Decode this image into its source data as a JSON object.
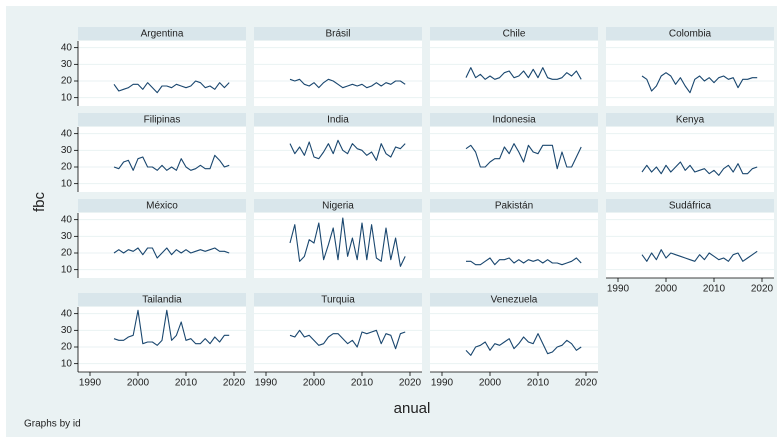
{
  "chart_data": {
    "type": "line",
    "y_label": "fbc",
    "x_label": "anual",
    "note": "Graphs by id",
    "x": [
      1995,
      1996,
      1997,
      1998,
      1999,
      2000,
      2001,
      2002,
      2003,
      2004,
      2005,
      2006,
      2007,
      2008,
      2009,
      2010,
      2011,
      2012,
      2013,
      2014,
      2015,
      2016,
      2017,
      2018,
      2019
    ],
    "xlim": [
      1987.5,
      2022.5
    ],
    "xticks": [
      1990,
      2000,
      2010,
      2020
    ],
    "ylim": [
      5,
      44
    ],
    "yticks": [
      10,
      20,
      30,
      40
    ],
    "series": [
      {
        "name": "Argentina",
        "color": "#1a476f",
        "values": [
          18,
          14,
          15,
          16,
          18,
          18,
          15,
          19,
          16,
          13,
          17,
          17,
          16,
          18,
          17,
          16,
          17,
          20,
          19,
          16,
          17,
          15,
          19,
          16,
          19
        ]
      },
      {
        "name": "Brásil",
        "color": "#1a476f",
        "values": [
          21,
          20,
          21,
          18,
          17,
          19,
          16,
          19,
          21,
          20,
          18,
          16,
          17,
          18,
          17,
          18,
          16,
          17,
          19,
          17,
          19,
          18,
          20,
          20,
          18
        ]
      },
      {
        "name": "Chile",
        "color": "#1a476f",
        "values": [
          22,
          28,
          22,
          24,
          21,
          23,
          21,
          22,
          25,
          26,
          22,
          23,
          26,
          22,
          27,
          22,
          28,
          22,
          21,
          21,
          22,
          25,
          23,
          26,
          21
        ]
      },
      {
        "name": "Colombia",
        "color": "#1a476f",
        "values": [
          23,
          21,
          14,
          17,
          23,
          25,
          23,
          18,
          22,
          17,
          13,
          21,
          23,
          20,
          22,
          19,
          22,
          23,
          21,
          22,
          16,
          21,
          21,
          22,
          22
        ]
      },
      {
        "name": "Filipinas",
        "color": "#1a476f",
        "values": [
          20,
          19,
          23,
          24,
          18,
          25,
          26,
          20,
          20,
          18,
          21,
          18,
          20,
          18,
          25,
          20,
          18,
          19,
          21,
          19,
          19,
          27,
          24,
          20,
          21
        ]
      },
      {
        "name": "India",
        "color": "#1a476f",
        "values": [
          34,
          28,
          32,
          27,
          35,
          26,
          25,
          29,
          34,
          28,
          36,
          30,
          28,
          34,
          31,
          30,
          27,
          29,
          24,
          34,
          28,
          26,
          32,
          31,
          34
        ]
      },
      {
        "name": "Indonesia",
        "color": "#1a476f",
        "values": [
          31,
          33,
          29,
          20,
          20,
          23,
          25,
          25,
          32,
          28,
          34,
          29,
          23,
          33,
          29,
          28,
          33,
          33,
          33,
          19,
          29,
          20,
          20,
          26,
          32
        ]
      },
      {
        "name": "Kenya",
        "color": "#1a476f",
        "values": [
          17,
          21,
          17,
          20,
          16,
          21,
          17,
          20,
          23,
          18,
          21,
          17,
          18,
          19,
          16,
          18,
          15,
          19,
          21,
          17,
          22,
          16,
          16,
          19,
          20
        ]
      },
      {
        "name": "México",
        "color": "#1a476f",
        "values": [
          20,
          22,
          20,
          22,
          21,
          23,
          19,
          23,
          23,
          17,
          20,
          23,
          19,
          22,
          20,
          22,
          20,
          21,
          22,
          21,
          22,
          23,
          21,
          21,
          20
        ]
      },
      {
        "name": "Nigeria",
        "color": "#1a476f",
        "values": [
          26,
          37,
          15,
          18,
          28,
          26,
          38,
          16,
          25,
          35,
          16,
          41,
          18,
          29,
          16,
          38,
          16,
          37,
          17,
          15,
          35,
          16,
          29,
          12,
          18
        ]
      },
      {
        "name": "Pakistán",
        "color": "#1a476f",
        "values": [
          15,
          15,
          13,
          13,
          15,
          17,
          13,
          16,
          16,
          17,
          14,
          16,
          14,
          16,
          15,
          16,
          14,
          16,
          14,
          14,
          13,
          14,
          15,
          17,
          14
        ]
      },
      {
        "name": "Sudáfrica",
        "color": "#1a476f",
        "values": [
          19,
          15,
          20,
          16,
          22,
          17,
          20,
          19,
          18,
          17,
          16,
          15,
          19,
          16,
          20,
          18,
          16,
          17,
          15,
          19,
          20,
          15,
          17,
          19,
          21
        ]
      },
      {
        "name": "Tailandia",
        "color": "#1a476f",
        "values": [
          25,
          24,
          24,
          26,
          27,
          42,
          22,
          23,
          23,
          21,
          24,
          42,
          24,
          27,
          35,
          24,
          25,
          22,
          22,
          25,
          22,
          26,
          23,
          27,
          27
        ]
      },
      {
        "name": "Turquia",
        "color": "#1a476f",
        "values": [
          27,
          26,
          30,
          26,
          27,
          24,
          21,
          22,
          26,
          28,
          28,
          25,
          22,
          24,
          20,
          29,
          28,
          29,
          30,
          22,
          28,
          27,
          19,
          28,
          29
        ]
      },
      {
        "name": "Venezuela",
        "color": "#1a476f",
        "values": [
          18,
          15,
          20,
          21,
          23,
          18,
          22,
          21,
          23,
          25,
          19,
          22,
          26,
          23,
          22,
          28,
          22,
          16,
          17,
          20,
          21,
          24,
          22,
          18,
          20
        ]
      }
    ]
  }
}
